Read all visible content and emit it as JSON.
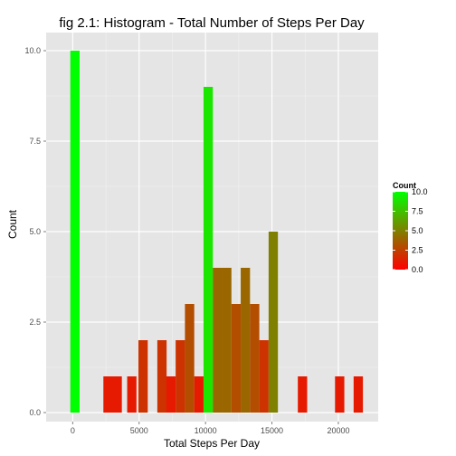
{
  "chart_data": {
    "type": "bar",
    "title": "fig 2.1: Histogram - Total Number of Steps Per Day",
    "xlabel": "Total Steps Per Day",
    "ylabel": "Count",
    "xlim": [
      -2000,
      23000
    ],
    "ylim": [
      -0.25,
      10.5
    ],
    "binwidth": 700,
    "x_ticks": [
      0,
      5000,
      10000,
      15000,
      20000
    ],
    "x_tick_labels": [
      "0",
      "5000",
      "10000",
      "15000",
      "20000"
    ],
    "y_ticks": [
      0,
      2.5,
      5,
      7.5,
      10
    ],
    "y_tick_labels": [
      "0.0",
      "2.5",
      "5.0",
      "7.5",
      "10.0"
    ],
    "bins": [
      {
        "x": 170,
        "count": 10
      },
      {
        "x": 2660,
        "count": 1
      },
      {
        "x": 3350,
        "count": 1
      },
      {
        "x": 4450,
        "count": 1
      },
      {
        "x": 5300,
        "count": 2
      },
      {
        "x": 6720,
        "count": 2
      },
      {
        "x": 7400,
        "count": 1
      },
      {
        "x": 8100,
        "count": 2
      },
      {
        "x": 8800,
        "count": 3
      },
      {
        "x": 9500,
        "count": 1
      },
      {
        "x": 10200,
        "count": 9
      },
      {
        "x": 10900,
        "count": 4
      },
      {
        "x": 11600,
        "count": 4
      },
      {
        "x": 12300,
        "count": 3
      },
      {
        "x": 13000,
        "count": 4
      },
      {
        "x": 13700,
        "count": 3
      },
      {
        "x": 14400,
        "count": 2
      },
      {
        "x": 15100,
        "count": 5
      },
      {
        "x": 17300,
        "count": 1
      },
      {
        "x": 20100,
        "count": 1
      },
      {
        "x": 21500,
        "count": 1
      }
    ],
    "legend": {
      "title": "Count",
      "position": "right",
      "ticks": [
        0,
        2.5,
        5,
        7.5,
        10
      ],
      "tick_labels": [
        "0.0",
        "2.5",
        "5.0",
        "7.5",
        "10.0"
      ],
      "low_color": "#ff0000",
      "high_color": "#00ff00"
    },
    "grid": true,
    "panel_background": "#e5e5e5",
    "grid_major_color": "#ffffff",
    "grid_minor_color": "#f2f2f2"
  }
}
